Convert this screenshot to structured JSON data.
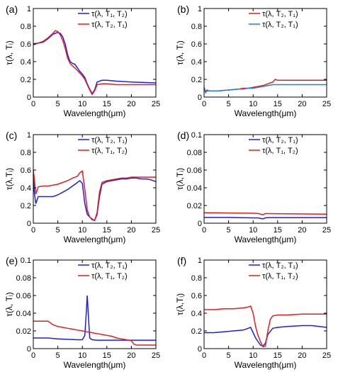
{
  "chart_data": [
    {
      "panel": "(a)",
      "type": "line",
      "xlabel": "Wavelength(μm)",
      "ylabel": "τ(λ, Tᵢ)",
      "xlim": [
        0,
        25
      ],
      "ylim": [
        0,
        1
      ],
      "xticks": [
        "0",
        "5",
        "10",
        "15",
        "20",
        "25"
      ],
      "yticks": [
        "0",
        "0.2",
        "0.4",
        "0.6",
        "0.8",
        "1"
      ],
      "legend_position": "top-right",
      "series": [
        {
          "name": "τ(λ, T₁, T₂)",
          "color": "#1f1fe0",
          "x": [
            0,
            1,
            2,
            3,
            4,
            4.5,
            5,
            5.5,
            6,
            6.5,
            7,
            7.5,
            8,
            8.5,
            9,
            9.5,
            10,
            10.5,
            11,
            11.5,
            12,
            12.5,
            13,
            14,
            15,
            17,
            20,
            25
          ],
          "y": [
            0.6,
            0.61,
            0.62,
            0.66,
            0.71,
            0.72,
            0.73,
            0.72,
            0.68,
            0.6,
            0.48,
            0.4,
            0.38,
            0.37,
            0.33,
            0.29,
            0.26,
            0.22,
            0.15,
            0.09,
            0.04,
            0.08,
            0.17,
            0.19,
            0.19,
            0.18,
            0.17,
            0.16
          ]
        },
        {
          "name": "τ(λ, T₂, T₁)",
          "color": "#e01f1f",
          "x": [
            0,
            1,
            2,
            3,
            4,
            4.5,
            5,
            5.5,
            6,
            6.5,
            7,
            7.5,
            8,
            8.5,
            9,
            9.5,
            10,
            10.5,
            11,
            11.5,
            12,
            12.5,
            13,
            14,
            15,
            17,
            20,
            25
          ],
          "y": [
            0.59,
            0.61,
            0.63,
            0.67,
            0.72,
            0.75,
            0.74,
            0.7,
            0.64,
            0.55,
            0.44,
            0.38,
            0.35,
            0.33,
            0.3,
            0.27,
            0.24,
            0.2,
            0.14,
            0.08,
            0.03,
            0.07,
            0.14,
            0.15,
            0.15,
            0.14,
            0.14,
            0.14
          ]
        }
      ]
    },
    {
      "panel": "(b)",
      "type": "line",
      "xlabel": "Wavelength(μm)",
      "ylabel": "τ(λ, Tᵢ)",
      "xlim": [
        0,
        25
      ],
      "ylim": [
        0,
        1
      ],
      "xticks": [
        "0",
        "5",
        "10",
        "15",
        "20",
        "25"
      ],
      "yticks": [
        "0",
        "0.2",
        "0.4",
        "0.6",
        "0.8",
        "1"
      ],
      "legend_position": "top-right",
      "series": [
        {
          "name": "τ(λ, T₂, T₁)",
          "color": "#e01f1f",
          "x": [
            0,
            0.3,
            0.6,
            1,
            2,
            3,
            5,
            7,
            8,
            9,
            10,
            11,
            12,
            13,
            14,
            14.5,
            15,
            16,
            18,
            20,
            22,
            24,
            25
          ],
          "y": [
            0.11,
            0.06,
            0.08,
            0.07,
            0.07,
            0.07,
            0.08,
            0.09,
            0.1,
            0.1,
            0.11,
            0.12,
            0.13,
            0.15,
            0.17,
            0.2,
            0.19,
            0.19,
            0.19,
            0.19,
            0.19,
            0.19,
            0.19
          ]
        },
        {
          "name": "τ(λ, T₂, T₁)",
          "color": "#1f7fe0",
          "x": [
            0,
            0.3,
            0.6,
            1,
            2,
            3,
            5,
            7,
            8,
            9,
            10,
            11,
            12,
            13,
            14,
            15,
            17,
            20,
            25
          ],
          "y": [
            0.1,
            0.05,
            0.07,
            0.07,
            0.07,
            0.07,
            0.08,
            0.09,
            0.09,
            0.1,
            0.1,
            0.11,
            0.12,
            0.13,
            0.14,
            0.14,
            0.14,
            0.14,
            0.14
          ]
        }
      ]
    },
    {
      "panel": "(c)",
      "type": "line",
      "xlabel": "Wavelength(μm)",
      "ylabel": "τ(λ,Tᵢ)",
      "xlim": [
        0,
        25
      ],
      "ylim": [
        0,
        1
      ],
      "xticks": [
        "0",
        "5",
        "10",
        "15",
        "20",
        "25"
      ],
      "yticks": [
        "0",
        "0.2",
        "0.4",
        "0.6",
        "0.8",
        "1"
      ],
      "legend_position": "top-right",
      "series": [
        {
          "name": "τ(λ, T₂, T₁)",
          "color": "#1f1fe0",
          "x": [
            0,
            0.2,
            0.5,
            1,
            2,
            3,
            4,
            5,
            6,
            7,
            8,
            9,
            9.5,
            10,
            10.5,
            11,
            11.5,
            12,
            12.5,
            13,
            13.5,
            14,
            15,
            16,
            17,
            18,
            19,
            20,
            21,
            22,
            23,
            24,
            25
          ],
          "y": [
            0.55,
            0.35,
            0.22,
            0.3,
            0.3,
            0.3,
            0.3,
            0.32,
            0.35,
            0.38,
            0.42,
            0.46,
            0.48,
            0.45,
            0.22,
            0.1,
            0.07,
            0.04,
            0.03,
            0.1,
            0.3,
            0.44,
            0.47,
            0.48,
            0.49,
            0.5,
            0.5,
            0.51,
            0.51,
            0.5,
            0.5,
            0.49,
            0.47
          ]
        },
        {
          "name": "τ(λ, T₁, T₂)",
          "color": "#e01f1f",
          "x": [
            0,
            0.2,
            0.5,
            1,
            2,
            3,
            4,
            5,
            6,
            7,
            8,
            9,
            9.5,
            10,
            10.5,
            11,
            11.5,
            12,
            12.5,
            13,
            13.5,
            14,
            15,
            16,
            17,
            18,
            19,
            20,
            21,
            22,
            23,
            24,
            25
          ],
          "y": [
            0.6,
            0.5,
            0.33,
            0.41,
            0.42,
            0.42,
            0.43,
            0.44,
            0.46,
            0.48,
            0.51,
            0.53,
            0.57,
            0.59,
            0.38,
            0.15,
            0.07,
            0.05,
            0.03,
            0.12,
            0.35,
            0.46,
            0.48,
            0.49,
            0.5,
            0.51,
            0.51,
            0.52,
            0.52,
            0.52,
            0.52,
            0.52,
            0.52
          ]
        }
      ]
    },
    {
      "panel": "(d)",
      "type": "line",
      "xlabel": "Wavelength(μm)",
      "ylabel": "τ(λ,Tᵢ)",
      "xlim": [
        0,
        25
      ],
      "ylim": [
        0,
        0.1
      ],
      "xticks": [
        "0",
        "5",
        "10",
        "15",
        "20",
        "25"
      ],
      "yticks": [
        "0",
        "0.02",
        "0.04",
        "0.06",
        "0.08",
        "0.1"
      ],
      "legend_position": "top-right",
      "series": [
        {
          "name": "τ(λ, T₂, T₁)",
          "color": "#1f1fe0",
          "x": [
            0,
            5,
            10,
            11,
            12,
            12.5,
            13,
            15,
            20,
            25
          ],
          "y": [
            0.0065,
            0.0065,
            0.006,
            0.006,
            0.005,
            0.006,
            0.0063,
            0.0063,
            0.0063,
            0.0063
          ]
        },
        {
          "name": "τ(λ, T₁, T₂)",
          "color": "#e01f1f",
          "x": [
            0,
            3,
            6,
            9,
            10,
            11,
            12,
            12.5,
            13,
            15,
            20,
            25
          ],
          "y": [
            0.0118,
            0.0117,
            0.0115,
            0.0113,
            0.0112,
            0.011,
            0.0095,
            0.011,
            0.0108,
            0.0107,
            0.0105,
            0.0102
          ]
        }
      ]
    },
    {
      "panel": "(e)",
      "type": "line",
      "xlabel": "Wavelength(μm)",
      "ylabel": "τ(λ, Tᵢ)",
      "xlim": [
        0,
        25
      ],
      "ylim": [
        0,
        0.1
      ],
      "xticks": [
        "0",
        "5",
        "10",
        "15",
        "20",
        "25"
      ],
      "yticks": [
        "0",
        "0.02",
        "0.04",
        "0.06",
        "0.08",
        "0.1"
      ],
      "legend_position": "top-right",
      "series": [
        {
          "name": "τ(λ, T₂, T₁)",
          "color": "#1f1fe0",
          "x": [
            0,
            3,
            5,
            7,
            9,
            10,
            10.5,
            10.8,
            11,
            11.2,
            11.5,
            12,
            13,
            15,
            20,
            25
          ],
          "y": [
            0.012,
            0.012,
            0.011,
            0.0105,
            0.01,
            0.01,
            0.015,
            0.04,
            0.06,
            0.04,
            0.012,
            0.01,
            0.0095,
            0.0095,
            0.0095,
            0.0095
          ]
        },
        {
          "name": "τ(λ, T₁, T₂)",
          "color": "#e01f1f",
          "x": [
            0,
            1,
            2,
            3,
            4,
            5,
            6,
            7,
            8,
            9,
            10,
            11,
            12,
            13,
            14,
            15,
            16,
            17,
            18,
            19,
            20,
            20.5,
            21,
            22,
            23,
            24,
            25
          ],
          "y": [
            0.031,
            0.031,
            0.031,
            0.031,
            0.027,
            0.025,
            0.024,
            0.023,
            0.022,
            0.021,
            0.02,
            0.019,
            0.018,
            0.017,
            0.016,
            0.015,
            0.014,
            0.012,
            0.011,
            0.01,
            0.009,
            0.005,
            0.004,
            0.004,
            0.004,
            0.004,
            0.004
          ]
        }
      ]
    },
    {
      "panel": "(f)",
      "type": "line",
      "xlabel": "Wavelength(μm)",
      "ylabel": "τ(λ,Tᵢ)",
      "xlim": [
        0,
        25
      ],
      "ylim": [
        0,
        1
      ],
      "xticks": [
        "0",
        "5",
        "10",
        "15",
        "20",
        "25"
      ],
      "yticks": [
        "0",
        "0.2",
        "0.4",
        "0.6",
        "0.8",
        "1"
      ],
      "legend_position": "top-right",
      "series": [
        {
          "name": "τ(λ, T₂, T₁)",
          "color": "#1f1fe0",
          "x": [
            0,
            2,
            4,
            6,
            8,
            9,
            9.5,
            10,
            10.5,
            11,
            11.5,
            12,
            12.5,
            13,
            14,
            15,
            17,
            20,
            22,
            25
          ],
          "y": [
            0.18,
            0.18,
            0.19,
            0.2,
            0.21,
            0.23,
            0.24,
            0.18,
            0.12,
            0.08,
            0.04,
            0.03,
            0.06,
            0.16,
            0.23,
            0.24,
            0.25,
            0.26,
            0.26,
            0.24
          ]
        },
        {
          "name": "τ(λ, T₁, T₂)",
          "color": "#e01f1f",
          "x": [
            0,
            2,
            4,
            6,
            8,
            9,
            9.5,
            10,
            10.5,
            11,
            11.5,
            12,
            12.5,
            13,
            13.5,
            14,
            15,
            17,
            20,
            22,
            25
          ],
          "y": [
            0.44,
            0.44,
            0.45,
            0.45,
            0.46,
            0.47,
            0.48,
            0.4,
            0.25,
            0.15,
            0.08,
            0.02,
            0.03,
            0.2,
            0.33,
            0.37,
            0.38,
            0.38,
            0.39,
            0.39,
            0.39
          ]
        }
      ]
    }
  ]
}
